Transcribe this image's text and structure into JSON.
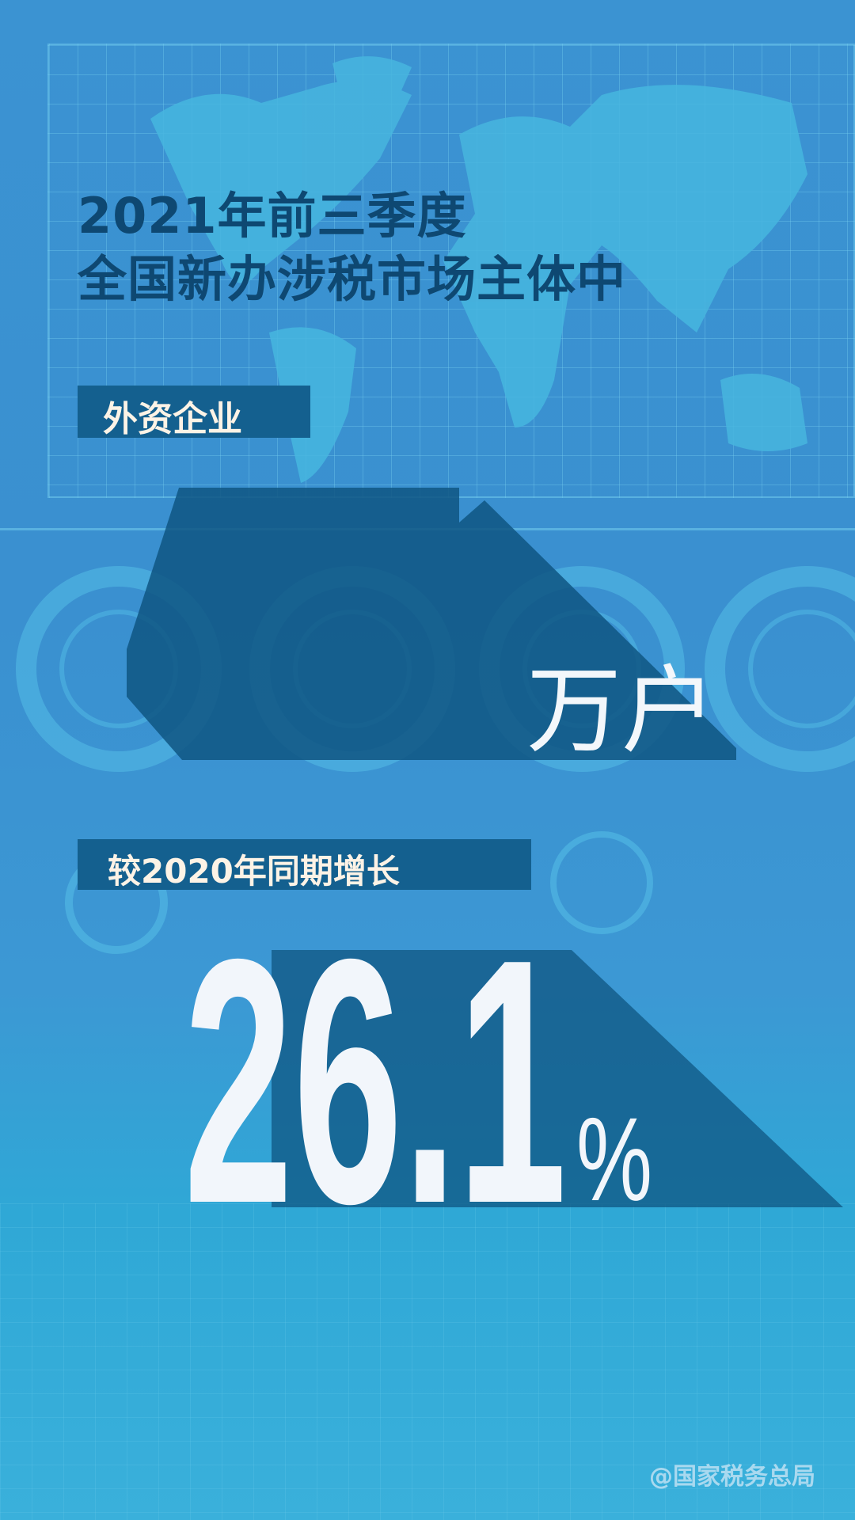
{
  "title": {
    "line1": "2021年前三季度",
    "line2": "全国新办涉税市场主体中"
  },
  "category_tag": "外资企业",
  "count": {
    "value": "",
    "unit": "万户"
  },
  "growth": {
    "label": "较2020年同期增长",
    "value": "26.1",
    "unit": "%"
  },
  "watermark": "@国家税务总局",
  "colors": {
    "background": "#3a90d0",
    "title": "#0e4872",
    "tag_bg": "#14608f",
    "shadow": "#0f5682",
    "number": "#f2f6fb"
  }
}
